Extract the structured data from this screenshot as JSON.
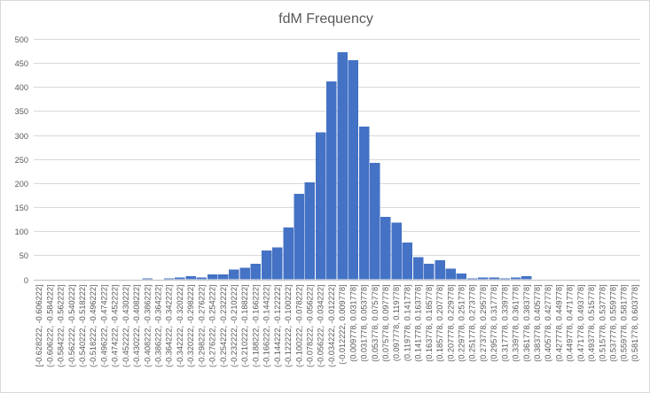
{
  "chart_data": {
    "type": "bar",
    "title": "fdM Frequency",
    "xlabel": "",
    "ylabel": "",
    "ylim": [
      0,
      500
    ],
    "yticks": [
      0,
      50,
      100,
      150,
      200,
      250,
      300,
      350,
      400,
      450,
      500
    ],
    "grid": true,
    "legend": "none",
    "bar_color": "#4472c4",
    "categories": [
      "[-0.628222, -0.606222]",
      "(-0.606222, -0.584222]",
      "(-0.584222, -0.562222]",
      "(-0.562222, -0.540222]",
      "(-0.540222, -0.518222]",
      "(-0.518222, -0.496222]",
      "(-0.496222, -0.474222]",
      "(-0.474222, -0.452222]",
      "(-0.452222, -0.430222]",
      "(-0.430222, -0.408222]",
      "(-0.408222, -0.386222]",
      "(-0.386222, -0.364222]",
      "(-0.364222, -0.342222]",
      "(-0.342222, -0.320222]",
      "(-0.320222, -0.298222]",
      "(-0.298222, -0.276222]",
      "(-0.276222, -0.254222]",
      "(-0.254222, -0.232222]",
      "(-0.232222, -0.210222]",
      "(-0.210222, -0.188222]",
      "(-0.188222, -0.166222]",
      "(-0.166222, -0.144222]",
      "(-0.144222, -0.122222]",
      "(-0.122222, -0.100222]",
      "(-0.100222, -0.078222]",
      "(-0.078222, -0.056222]",
      "(-0.056222, -0.034222]",
      "(-0.034222, -0.012222]",
      "(-0.012222, 0.009778]",
      "(0.009778, 0.031778]",
      "(0.031778, 0.053778]",
      "(0.053778, 0.075778]",
      "(0.075778, 0.097778]",
      "(0.097778, 0.119778]",
      "(0.119778, 0.141778]",
      "(0.141778, 0.163778]",
      "(0.163778, 0.185778]",
      "(0.185778, 0.207778]",
      "(0.207778, 0.229778]",
      "(0.229778, 0.251778]",
      "(0.251778, 0.273778]",
      "(0.273778, 0.295778]",
      "(0.295778, 0.317778]",
      "(0.317778, 0.339778]",
      "(0.339778, 0.361778]",
      "(0.361778, 0.383778]",
      "(0.383778, 0.405778]",
      "(0.405778, 0.427778]",
      "(0.427778, 0.449778]",
      "(0.449778, 0.471778]",
      "(0.471778, 0.493778]",
      "(0.493778, 0.515778]",
      "(0.515778, 0.537778]",
      "(0.537778, 0.559778]",
      "(0.559778, 0.581778]",
      "(0.581778, 0.603778]"
    ],
    "values": [
      0,
      0,
      0,
      0,
      0,
      0,
      0,
      0,
      0,
      0,
      2,
      0,
      2,
      4,
      6,
      4,
      10,
      10,
      20,
      24,
      32,
      60,
      66,
      108,
      178,
      202,
      306,
      412,
      472,
      456,
      318,
      242,
      130,
      118,
      76,
      46,
      32,
      40,
      22,
      12,
      2,
      4,
      4,
      2,
      4,
      6,
      0,
      0,
      0,
      0,
      0,
      0,
      0,
      0,
      0,
      0
    ]
  }
}
